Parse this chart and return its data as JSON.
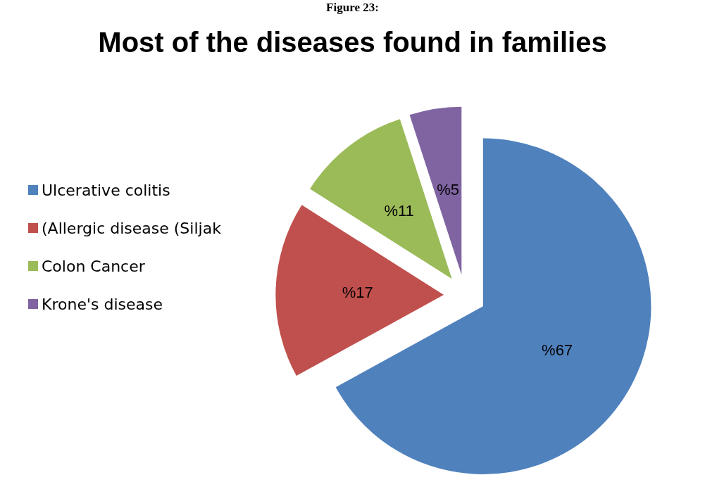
{
  "chart_data": {
    "type": "pie",
    "title": "Most of the diseases found in families",
    "annotations": [
      "Figure 23:"
    ],
    "categories": [
      "Ulcerative colitis",
      "(Allergic disease (Siljak",
      "Colon Cancer",
      "Krone's disease"
    ],
    "values": [
      67,
      17,
      11,
      5
    ],
    "colors": [
      "#4f81bd",
      "#c0504d",
      "#9bbb59",
      "#8064a2"
    ],
    "value_labels": [
      "%67",
      "%17",
      "%11",
      "%5"
    ],
    "legend": "left"
  }
}
